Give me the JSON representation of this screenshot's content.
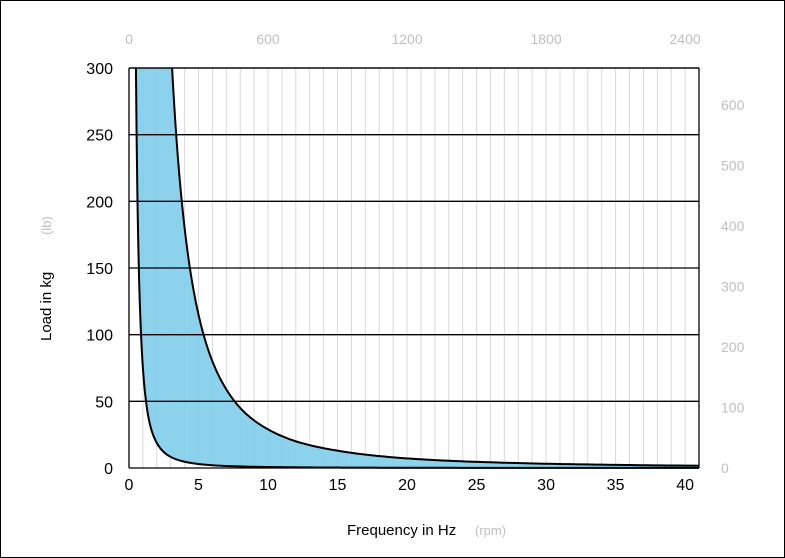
{
  "chart_data": {
    "type": "area",
    "title": "",
    "xlabel": "Frequency in Hz",
    "xlabel_secondary": "(rpm)",
    "ylabel": "Load in kg",
    "ylabel_secondary": "(lb)",
    "xlim": [
      0,
      41
    ],
    "ylim": [
      0,
      300
    ],
    "x_ticks": [
      0,
      5,
      10,
      15,
      20,
      25,
      30,
      35,
      40
    ],
    "y_ticks": [
      0,
      50,
      100,
      150,
      200,
      250,
      300
    ],
    "x2_ticks": [
      0,
      600,
      1200,
      1800,
      2400
    ],
    "y2_ticks": [
      0,
      100,
      200,
      300,
      400,
      500,
      600
    ],
    "grid": {
      "vertical": "every 1 Hz",
      "horizontal": "every 50 kg"
    },
    "fill_color": "#7fcdeb",
    "line_color": "#000000",
    "series": [
      {
        "role": "upper-boundary",
        "x": [
          3.1,
          3.5,
          4,
          4.5,
          5,
          6,
          7,
          8,
          10,
          12,
          15,
          20,
          25,
          30,
          35,
          41
        ],
        "y": [
          300,
          235,
          180,
          142,
          115,
          80,
          59,
          45,
          29,
          20,
          13,
          7.2,
          4.6,
          3.2,
          2.35,
          1.7
        ]
      },
      {
        "role": "lower-boundary",
        "x": [
          0.5,
          0.6,
          0.7,
          0.8,
          1,
          1.2,
          1.5,
          2,
          3,
          4,
          5,
          7,
          10,
          20,
          41
        ],
        "y": [
          300,
          208,
          153,
          117,
          75,
          52,
          33,
          18.8,
          8.3,
          4.7,
          3.0,
          1.5,
          0.75,
          0.19,
          0.05
        ]
      }
    ]
  }
}
